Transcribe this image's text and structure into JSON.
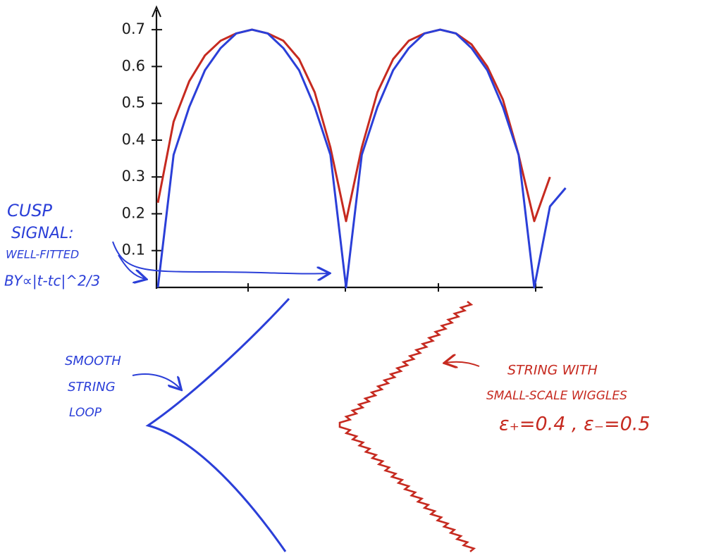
{
  "chart_data": {
    "type": "line",
    "categories": [
      null,
      null,
      null,
      null,
      null,
      null,
      null,
      null,
      null,
      null,
      null,
      null,
      null,
      null,
      null,
      null,
      null,
      null,
      null,
      null,
      null,
      null,
      null,
      null,
      null,
      null,
      null
    ],
    "series": [
      {
        "color": "#c62a20",
        "values": [
          0.23,
          0.45,
          0.56,
          0.63,
          0.67,
          0.69,
          0.7,
          0.69,
          0.67,
          0.62,
          0.53,
          0.38,
          0.18,
          0.38,
          0.53,
          0.62,
          0.67,
          0.69,
          0.7,
          0.69,
          0.66,
          0.6,
          0.51,
          0.36,
          0.18,
          0.3,
          null
        ]
      },
      {
        "color": "#2b3fd8",
        "values": [
          0,
          0.36,
          0.49,
          0.59,
          0.65,
          0.69,
          0.7,
          0.69,
          0.65,
          0.59,
          0.49,
          0.36,
          0,
          0.36,
          0.49,
          0.59,
          0.65,
          0.69,
          0.7,
          0.69,
          0.65,
          0.59,
          0.49,
          0.36,
          0,
          0.22,
          0.27
        ]
      }
    ],
    "ylim": [
      0,
      0.75
    ],
    "yticks": [
      0.1,
      0.2,
      0.3,
      0.4,
      0.5,
      0.6,
      0.7
    ],
    "annotations": [
      {
        "text": "CUSP",
        "color": "#2b3fd8"
      },
      {
        "text": "SIGNAL:",
        "color": "#2b3fd8"
      },
      {
        "text": "WELL-FITTED",
        "color": "#2b3fd8"
      },
      {
        "text": "BY∝|t-tc|^2/3",
        "color": "#2b3fd8"
      },
      {
        "text": "SMOOTH",
        "color": "#2b3fd8"
      },
      {
        "text": "STRING",
        "color": "#2b3fd8"
      },
      {
        "text": "LOOP",
        "color": "#2b3fd8"
      },
      {
        "text": "STRING WITH",
        "color": "#c62a20"
      },
      {
        "text": "SMALL-SCALE WIGGLES",
        "color": "#c62a20"
      },
      {
        "text": "ε₊=0.4 , ε₋=0.5",
        "color": "#c62a20"
      }
    ]
  }
}
